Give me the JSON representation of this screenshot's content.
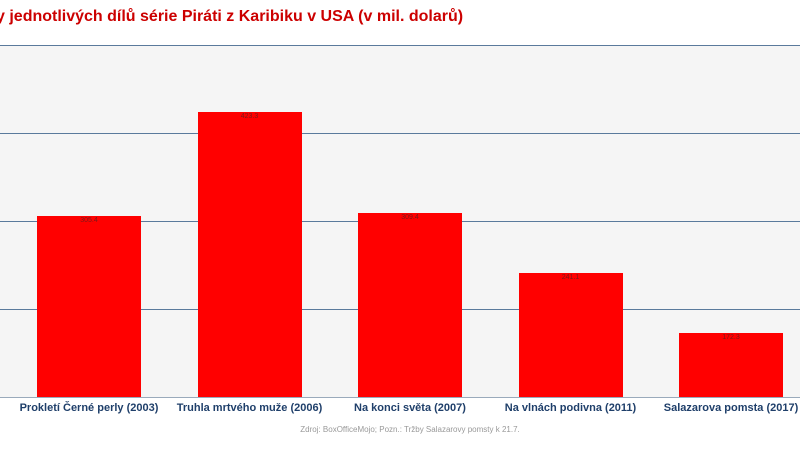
{
  "chart_data": {
    "type": "bar",
    "title": "y jednotlivých dílů série Piráti z Karibiku v USA (v mil. dolarů)",
    "categories": [
      "Prokletí Černé perly (2003)",
      "Truhla mrtvého muže (2006)",
      "Na konci světa (2007)",
      "Na vlnách podivna (2011)",
      "Salazarova pomsta (2017)"
    ],
    "values": [
      305.4,
      423.3,
      309.4,
      241.1,
      172.3
    ],
    "value_labels": [
      "305.4",
      "423.3",
      "309.4",
      "241.1",
      "172.3"
    ],
    "xlabel": "",
    "ylabel": "",
    "ylim": [
      100,
      500
    ],
    "gridlines": [
      200,
      300,
      400,
      500
    ],
    "grid": true,
    "legend": null,
    "bar_color": "#ff0000",
    "source": "Zdroj: BoxOfficeMojo; Pozn.: Tržby Salazarovy pomsty k 21.7."
  }
}
